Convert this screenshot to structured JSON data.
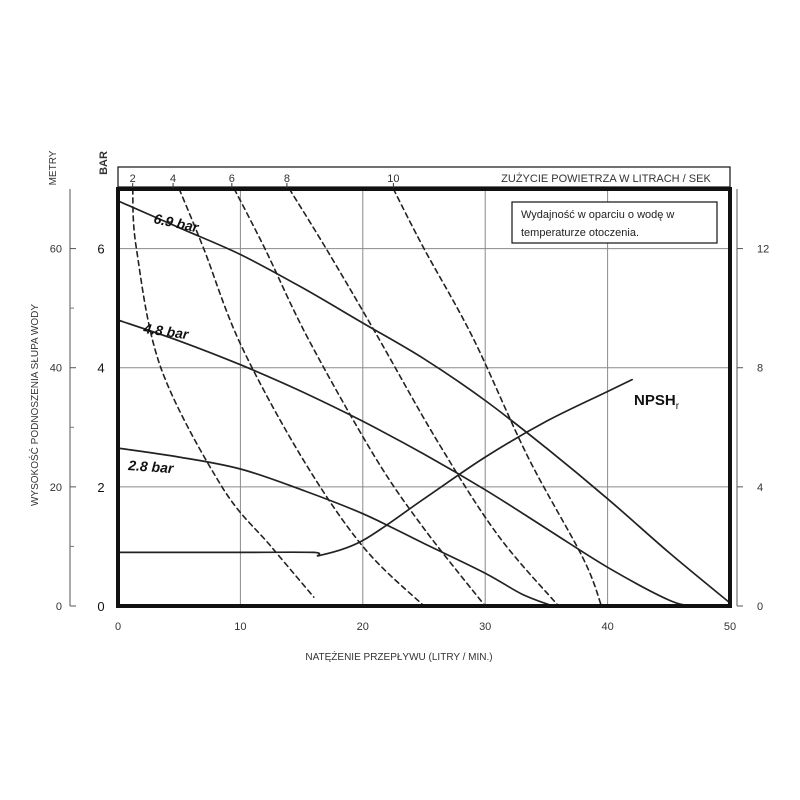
{
  "chart_data": {
    "type": "line",
    "xlabel": "NATĘŻENIE PRZEPŁYWU (LITRY / MIN.)",
    "ylabel_meters": "WYSOKOŚĆ PODNOSZENIA SŁUPA WODY",
    "unit_meters": "METRY",
    "unit_bar": "BAR",
    "air_axis_label": "ZUŻYCIE POWIETRZA W LITRACH / SEK",
    "note": [
      "Wydajność w oparciu o wodę w",
      "temperaturze otoczenia."
    ],
    "xlim": [
      0,
      50
    ],
    "ylim_bar": [
      0,
      7
    ],
    "x_ticks": [
      "0",
      "10",
      "20",
      "30",
      "40",
      "50"
    ],
    "bar_ticks": [
      "0",
      "2",
      "4",
      "6"
    ],
    "meter_ticks": [
      "0",
      "20",
      "40",
      "60"
    ],
    "npsh_ticks": [
      "0",
      "4",
      "8",
      "12"
    ],
    "air_ticks": [
      "2",
      "4",
      "6",
      "8",
      "10"
    ],
    "grid": true,
    "series": [
      {
        "name": "6.9 bar",
        "style": "solid",
        "x": [
          0,
          5,
          10,
          15,
          20,
          25,
          30,
          35,
          40,
          45,
          50
        ],
        "y": [
          6.8,
          6.35,
          5.9,
          5.35,
          4.75,
          4.15,
          3.45,
          2.65,
          1.8,
          0.9,
          0.05
        ]
      },
      {
        "name": "4.8 bar",
        "style": "solid",
        "x": [
          0,
          5,
          10,
          15,
          20,
          25,
          30,
          35,
          40,
          45,
          47
        ],
        "y": [
          4.8,
          4.45,
          4.05,
          3.6,
          3.1,
          2.55,
          1.95,
          1.3,
          0.65,
          0.1,
          0.0
        ]
      },
      {
        "name": "2.8 bar",
        "style": "solid",
        "x": [
          0,
          5,
          10,
          15,
          20,
          25,
          30,
          33,
          35.5
        ],
        "y": [
          2.65,
          2.5,
          2.3,
          1.95,
          1.55,
          1.05,
          0.55,
          0.2,
          0.0
        ]
      },
      {
        "name": "NPSHr",
        "style": "solid",
        "axis": "npsh",
        "x": [
          0,
          5,
          10,
          16,
          16.5,
          20,
          25,
          30,
          35,
          40,
          42
        ],
        "y": [
          1.8,
          1.8,
          1.8,
          1.8,
          1.7,
          2.2,
          3.6,
          5.0,
          6.2,
          7.2,
          7.6
        ]
      },
      {
        "name": "2",
        "style": "dashed",
        "x": [
          1.2,
          1.5,
          3.5,
          8.5,
          12.5,
          16
        ],
        "y": [
          7,
          6,
          4,
          2,
          1,
          0.15
        ]
      },
      {
        "name": "4",
        "style": "dashed",
        "x": [
          5,
          7,
          10,
          15,
          20,
          25
        ],
        "y": [
          7,
          6,
          4.4,
          2.5,
          1.0,
          0.0
        ]
      },
      {
        "name": "6",
        "style": "dashed",
        "x": [
          9.5,
          12,
          15.5,
          21,
          25,
          30
        ],
        "y": [
          7,
          6,
          4.5,
          2.5,
          1.3,
          0.0
        ]
      },
      {
        "name": "8",
        "style": "dashed",
        "x": [
          14,
          17,
          21,
          26,
          31,
          36
        ],
        "y": [
          7,
          6,
          4.6,
          2.8,
          1.2,
          0.0
        ]
      },
      {
        "name": "10",
        "style": "dashed",
        "x": [
          22.5,
          25,
          29,
          33.5,
          38,
          39.5
        ],
        "y": [
          7,
          6,
          4.5,
          2.5,
          0.8,
          0.0
        ]
      }
    ]
  }
}
